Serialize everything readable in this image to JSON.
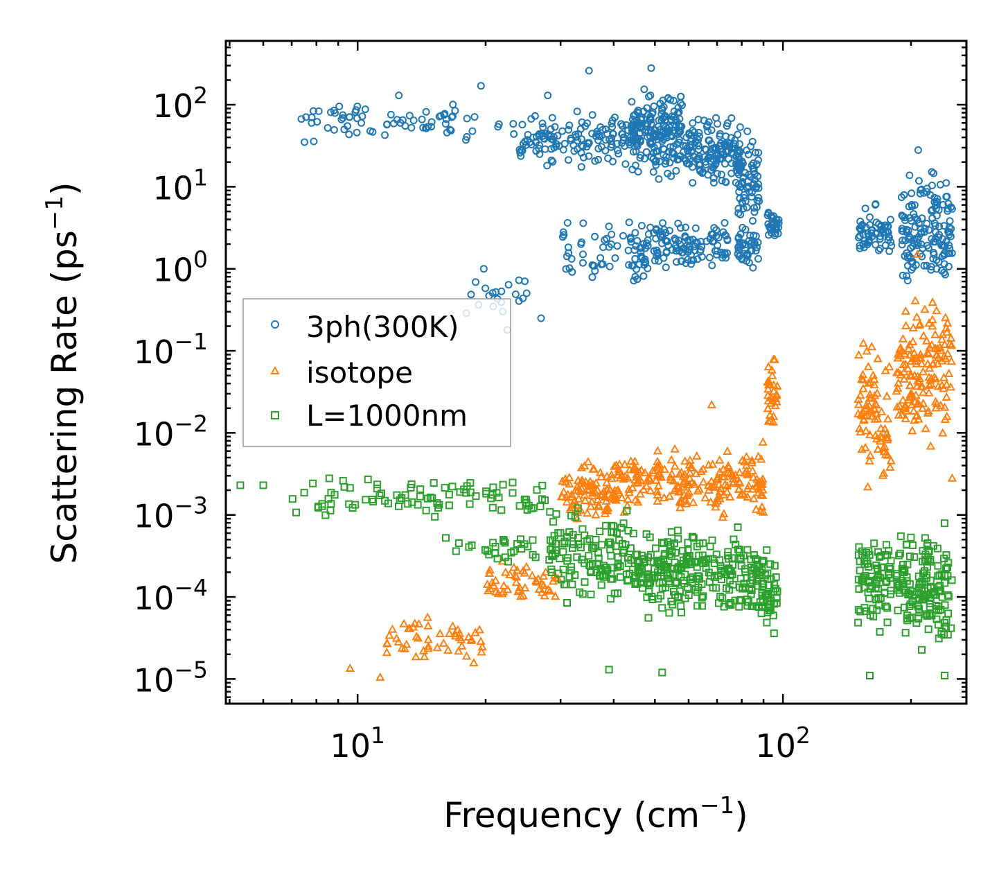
{
  "chart_data": {
    "type": "scatter",
    "xscale": "log",
    "yscale": "log",
    "xlim": [
      4.9,
      270
    ],
    "ylim": [
      5e-06,
      600
    ],
    "xlabel": "Frequency (cm",
    "xlabel_sup": "−1",
    "xlabel_end": ")",
    "ylabel": "Scattering Rate (ps",
    "ylabel_sup": "−1",
    "ylabel_end": ")",
    "legend_position": "center-left",
    "x_ticks": [
      {
        "value": 10,
        "base": "10",
        "exp": "1"
      },
      {
        "value": 100,
        "base": "10",
        "exp": "2"
      }
    ],
    "y_ticks": [
      {
        "value": 100,
        "base": "10",
        "exp": "2"
      },
      {
        "value": 10,
        "base": "10",
        "exp": "1"
      },
      {
        "value": 1,
        "base": "10",
        "exp": "0"
      },
      {
        "value": 0.1,
        "base": "10",
        "exp": "−1"
      },
      {
        "value": 0.01,
        "base": "10",
        "exp": "−2"
      },
      {
        "value": 0.001,
        "base": "10",
        "exp": "−3"
      },
      {
        "value": 0.0001,
        "base": "10",
        "exp": "−4"
      },
      {
        "value": 1e-05,
        "base": "10",
        "exp": "−5"
      }
    ],
    "series": [
      {
        "name": "3ph(300K)",
        "marker": "circle",
        "color": "#1f77b4",
        "clusters": [
          {
            "x": [
              7,
              24
            ],
            "y": [
              30,
              120
            ],
            "n": 70
          },
          {
            "x": [
              24,
              45
            ],
            "y": [
              15,
              100
            ],
            "n": 140
          },
          {
            "x": [
              44,
              58
            ],
            "y": [
              10,
              220
            ],
            "n": 180
          },
          {
            "x": [
              58,
              80
            ],
            "y": [
              8,
              90
            ],
            "n": 140
          },
          {
            "x": [
              78,
              88
            ],
            "y": [
              2,
              60
            ],
            "n": 70
          },
          {
            "x": [
              30,
              48
            ],
            "y": [
              0.4,
              5
            ],
            "n": 60
          },
          {
            "x": [
              46,
              75
            ],
            "y": [
              0.7,
              5
            ],
            "n": 120
          },
          {
            "x": [
              78,
              88
            ],
            "y": [
              0.8,
              4
            ],
            "n": 40
          },
          {
            "x": [
              92,
              98
            ],
            "y": [
              2,
              6
            ],
            "n": 30
          },
          {
            "x": [
              18,
              25
            ],
            "y": [
              0.2,
              1.1
            ],
            "n": 20
          },
          {
            "x": [
              150,
              180
            ],
            "y": [
              1,
              7
            ],
            "n": 60
          },
          {
            "x": [
              190,
              250
            ],
            "y": [
              0.4,
              25
            ],
            "n": 150
          }
        ],
        "points": [
          {
            "x": 7.5,
            "y": 35
          },
          {
            "x": 7.8,
            "y": 70
          },
          {
            "x": 8.8,
            "y": 85
          },
          {
            "x": 9.3,
            "y": 50
          },
          {
            "x": 10.2,
            "y": 60
          },
          {
            "x": 12.5,
            "y": 130
          },
          {
            "x": 19.5,
            "y": 170
          },
          {
            "x": 28,
            "y": 130
          },
          {
            "x": 35,
            "y": 260
          },
          {
            "x": 49,
            "y": 280
          },
          {
            "x": 19.8,
            "y": 1
          },
          {
            "x": 22.5,
            "y": 0.18
          },
          {
            "x": 27,
            "y": 0.25
          },
          {
            "x": 208,
            "y": 28
          }
        ]
      },
      {
        "name": "isotope",
        "marker": "triangle",
        "color": "#ff7f0e",
        "clusters": [
          {
            "x": [
              11.5,
              20
            ],
            "y": [
              1.2e-05,
              8e-05
            ],
            "n": 50
          },
          {
            "x": [
              20,
              30
            ],
            "y": [
              6e-05,
              0.00035
            ],
            "n": 50
          },
          {
            "x": [
              30,
              40
            ],
            "y": [
              0.0006,
              0.006
            ],
            "n": 80
          },
          {
            "x": [
              40,
              80
            ],
            "y": [
              0.0008,
              0.008
            ],
            "n": 180
          },
          {
            "x": [
              80,
              90
            ],
            "y": [
              0.0006,
              0.01
            ],
            "n": 40
          },
          {
            "x": [
              92,
              97
            ],
            "y": [
              0.01,
              0.1
            ],
            "n": 30
          },
          {
            "x": [
              150,
              180
            ],
            "y": [
              0.001,
              0.25
            ],
            "n": 80
          },
          {
            "x": [
              185,
              250
            ],
            "y": [
              0.005,
              0.8
            ],
            "n": 150
          }
        ],
        "points": [
          {
            "x": 9.6,
            "y": 1.35e-05
          },
          {
            "x": 11.3,
            "y": 1.05e-05
          },
          {
            "x": 68,
            "y": 0.022
          },
          {
            "x": 207,
            "y": 1.5
          },
          {
            "x": 250,
            "y": 0.0028
          }
        ]
      },
      {
        "name": "L=1000nm",
        "marker": "square",
        "color": "#2ca02c",
        "clusters": [
          {
            "x": [
              7,
              28
            ],
            "y": [
              0.0008,
              0.0035
            ],
            "n": 90
          },
          {
            "x": [
              16,
              30
            ],
            "y": [
              0.00018,
              0.0008
            ],
            "n": 30
          },
          {
            "x": [
              28,
              45
            ],
            "y": [
              6e-05,
              0.0015
            ],
            "n": 130
          },
          {
            "x": [
              45,
              80
            ],
            "y": [
              4e-05,
              0.001
            ],
            "n": 220
          },
          {
            "x": [
              80,
              92
            ],
            "y": [
              3e-05,
              0.0008
            ],
            "n": 60
          },
          {
            "x": [
              92,
              97
            ],
            "y": [
              3e-05,
              0.0004
            ],
            "n": 25
          },
          {
            "x": [
              150,
              180
            ],
            "y": [
              2.5e-05,
              0.001
            ],
            "n": 80
          },
          {
            "x": [
              185,
              250
            ],
            "y": [
              1.5e-05,
              0.0012
            ],
            "n": 150
          }
        ],
        "points": [
          {
            "x": 5.3,
            "y": 0.0023
          },
          {
            "x": 6,
            "y": 0.0023
          },
          {
            "x": 39,
            "y": 1.3e-05
          },
          {
            "x": 52,
            "y": 1.2e-05
          },
          {
            "x": 160,
            "y": 1.1e-05
          },
          {
            "x": 240,
            "y": 1.1e-05
          }
        ]
      }
    ]
  }
}
